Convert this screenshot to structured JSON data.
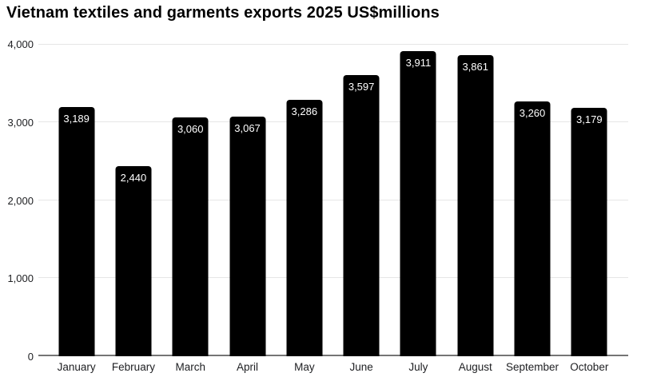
{
  "title": "Vietnam textiles and garments exports 2025 US$millions",
  "colors": {
    "background": "#ffffff",
    "bar": "#000000",
    "bar_label": "#ffffff",
    "grid": "#e6e6e6",
    "axis_line": "#757575",
    "text": "#000000",
    "tick_text": "#202124"
  },
  "chart_data": {
    "type": "bar",
    "title": "Vietnam textiles and garments exports 2025 US$millions",
    "categories": [
      "January",
      "February",
      "March",
      "April",
      "May",
      "June",
      "July",
      "August",
      "September",
      "October"
    ],
    "values": [
      3189,
      2440,
      3060,
      3067,
      3286,
      3597,
      3911,
      3861,
      3260,
      3179
    ],
    "value_labels": [
      "3,189",
      "2,440",
      "3,060",
      "3,067",
      "3,286",
      "3,597",
      "3,911",
      "3,861",
      "3,260",
      "3,179"
    ],
    "xlabel": "",
    "ylabel": "",
    "ylim": [
      0,
      4000
    ],
    "yticks": [
      0,
      1000,
      2000,
      3000,
      4000
    ],
    "ytick_labels": [
      "0",
      "1,000",
      "2,000",
      "3,000",
      "4,000"
    ],
    "grid": true,
    "legend": false,
    "bar_label_position": "inside-top"
  }
}
